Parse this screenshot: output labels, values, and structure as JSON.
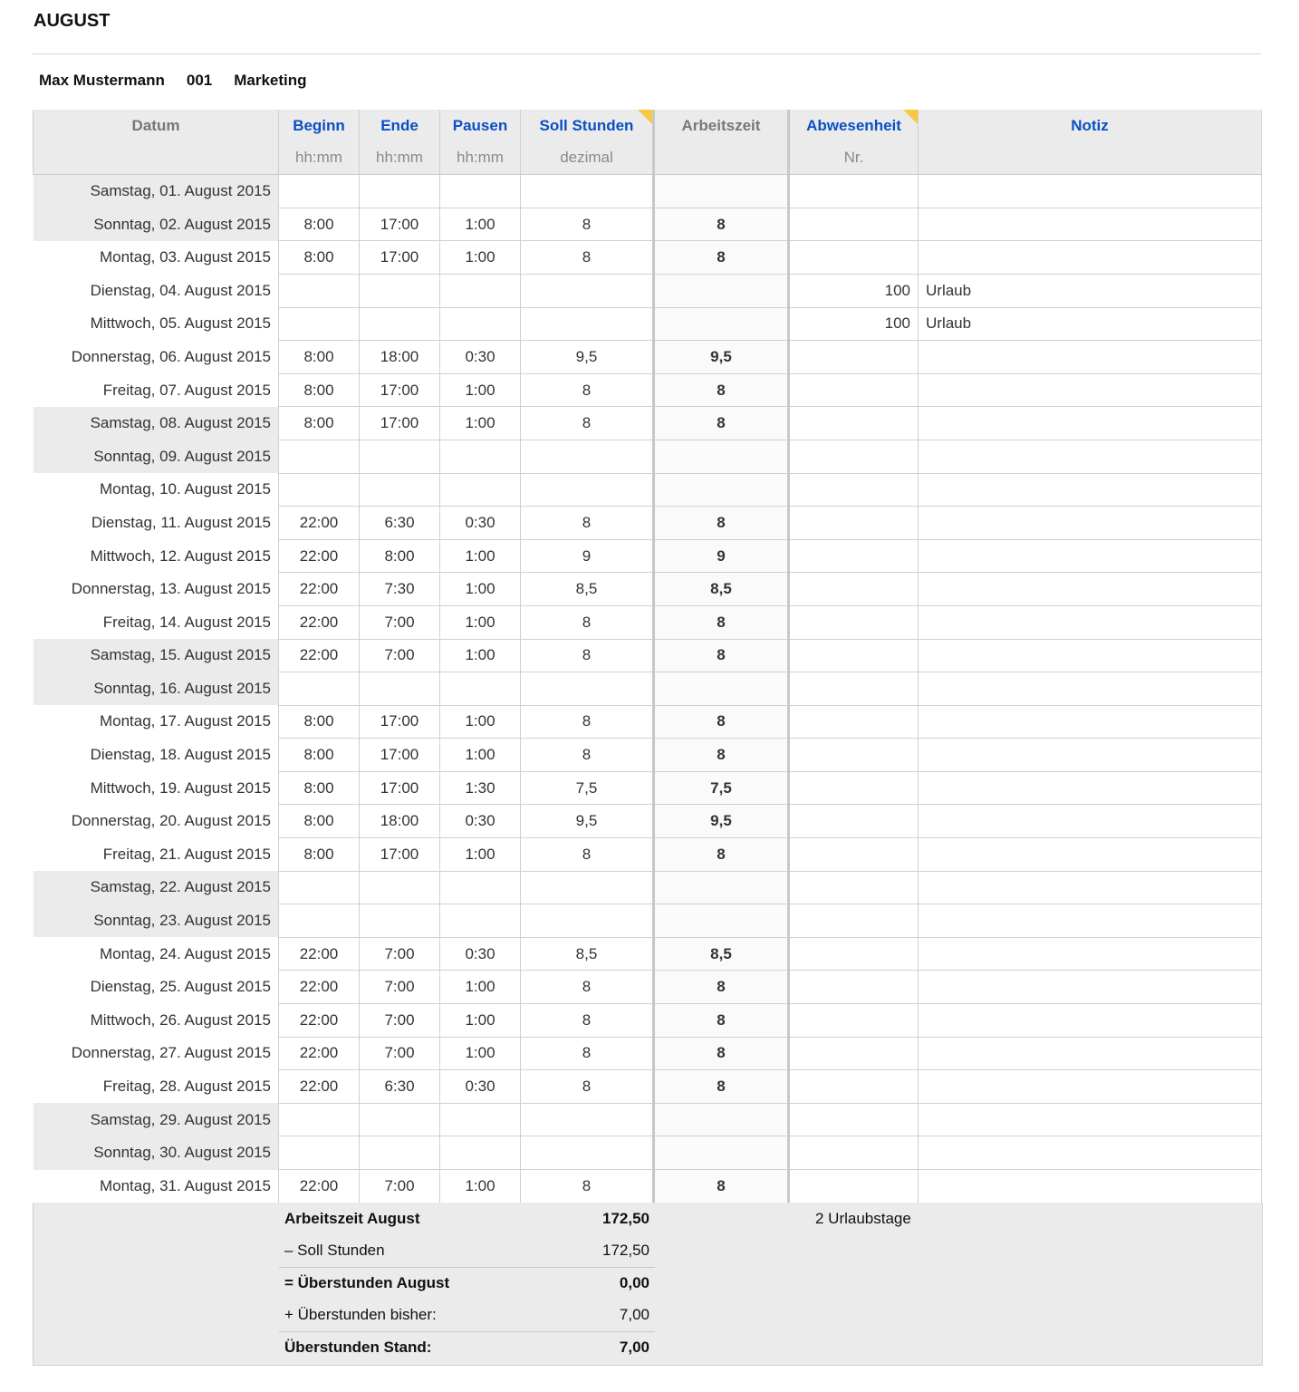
{
  "title": "AUGUST",
  "employee": {
    "name": "Max Mustermann",
    "id": "001",
    "department": "Marketing"
  },
  "headers": [
    {
      "label": "Datum",
      "sub": ""
    },
    {
      "label": "Beginn",
      "sub": "hh:mm"
    },
    {
      "label": "Ende",
      "sub": "hh:mm"
    },
    {
      "label": "Pausen",
      "sub": "hh:mm"
    },
    {
      "label": "Soll Stunden",
      "sub": "dezimal"
    },
    {
      "label": "Arbeitszeit",
      "sub": ""
    },
    {
      "label": "Abwesenheit",
      "sub": "Nr."
    },
    {
      "label": "Notiz",
      "sub": ""
    }
  ],
  "rows": [
    [
      "Samstag, 01. August 2015",
      "",
      "",
      "",
      "",
      "",
      "",
      "",
      1
    ],
    [
      "Sonntag, 02. August 2015",
      "8:00",
      "17:00",
      "1:00",
      "8",
      "8",
      "",
      "",
      1
    ],
    [
      "Montag, 03. August 2015",
      "8:00",
      "17:00",
      "1:00",
      "8",
      "8",
      "",
      "",
      0
    ],
    [
      "Dienstag, 04. August 2015",
      "",
      "",
      "",
      "",
      "",
      "100",
      "Urlaub",
      0
    ],
    [
      "Mittwoch, 05. August 2015",
      "",
      "",
      "",
      "",
      "",
      "100",
      "Urlaub",
      0
    ],
    [
      "Donnerstag, 06. August 2015",
      "8:00",
      "18:00",
      "0:30",
      "9,5",
      "9,5",
      "",
      "",
      0
    ],
    [
      "Freitag, 07. August 2015",
      "8:00",
      "17:00",
      "1:00",
      "8",
      "8",
      "",
      "",
      0
    ],
    [
      "Samstag, 08. August 2015",
      "8:00",
      "17:00",
      "1:00",
      "8",
      "8",
      "",
      "",
      1
    ],
    [
      "Sonntag, 09. August 2015",
      "",
      "",
      "",
      "",
      "",
      "",
      "",
      1
    ],
    [
      "Montag, 10. August 2015",
      "",
      "",
      "",
      "",
      "",
      "",
      "",
      0
    ],
    [
      "Dienstag, 11. August 2015",
      "22:00",
      "6:30",
      "0:30",
      "8",
      "8",
      "",
      "",
      0
    ],
    [
      "Mittwoch, 12. August 2015",
      "22:00",
      "8:00",
      "1:00",
      "9",
      "9",
      "",
      "",
      0
    ],
    [
      "Donnerstag, 13. August 2015",
      "22:00",
      "7:30",
      "1:00",
      "8,5",
      "8,5",
      "",
      "",
      0
    ],
    [
      "Freitag, 14. August 2015",
      "22:00",
      "7:00",
      "1:00",
      "8",
      "8",
      "",
      "",
      0
    ],
    [
      "Samstag, 15. August 2015",
      "22:00",
      "7:00",
      "1:00",
      "8",
      "8",
      "",
      "",
      1
    ],
    [
      "Sonntag, 16. August 2015",
      "",
      "",
      "",
      "",
      "",
      "",
      "",
      1
    ],
    [
      "Montag, 17. August 2015",
      "8:00",
      "17:00",
      "1:00",
      "8",
      "8",
      "",
      "",
      0
    ],
    [
      "Dienstag, 18. August 2015",
      "8:00",
      "17:00",
      "1:00",
      "8",
      "8",
      "",
      "",
      0
    ],
    [
      "Mittwoch, 19. August 2015",
      "8:00",
      "17:00",
      "1:30",
      "7,5",
      "7,5",
      "",
      "",
      0
    ],
    [
      "Donnerstag, 20. August 2015",
      "8:00",
      "18:00",
      "0:30",
      "9,5",
      "9,5",
      "",
      "",
      0
    ],
    [
      "Freitag, 21. August 2015",
      "8:00",
      "17:00",
      "1:00",
      "8",
      "8",
      "",
      "",
      0
    ],
    [
      "Samstag, 22. August 2015",
      "",
      "",
      "",
      "",
      "",
      "",
      "",
      1
    ],
    [
      "Sonntag, 23. August 2015",
      "",
      "",
      "",
      "",
      "",
      "",
      "",
      1
    ],
    [
      "Montag, 24. August 2015",
      "22:00",
      "7:00",
      "0:30",
      "8,5",
      "8,5",
      "",
      "",
      0
    ],
    [
      "Dienstag, 25. August 2015",
      "22:00",
      "7:00",
      "1:00",
      "8",
      "8",
      "",
      "",
      0
    ],
    [
      "Mittwoch, 26. August 2015",
      "22:00",
      "7:00",
      "1:00",
      "8",
      "8",
      "",
      "",
      0
    ],
    [
      "Donnerstag, 27. August 2015",
      "22:00",
      "7:00",
      "1:00",
      "8",
      "8",
      "",
      "",
      0
    ],
    [
      "Freitag, 28. August 2015",
      "22:00",
      "6:30",
      "0:30",
      "8",
      "8",
      "",
      "",
      0
    ],
    [
      "Samstag, 29. August 2015",
      "",
      "",
      "",
      "",
      "",
      "",
      "",
      1
    ],
    [
      "Sonntag, 30. August 2015",
      "",
      "",
      "",
      "",
      "",
      "",
      "",
      1
    ],
    [
      "Montag, 31. August 2015",
      "22:00",
      "7:00",
      "1:00",
      "8",
      "8",
      "",
      "",
      0
    ]
  ],
  "summary": [
    {
      "label": "Arbeitszeit August",
      "value": "172,50",
      "bold": true
    },
    {
      "label": "– Soll Stunden",
      "value": "172,50",
      "bold": false
    },
    {
      "label": "= Überstunden August",
      "value": "0,00",
      "bold": true
    },
    {
      "label": "+ Überstunden bisher:",
      "value": "7,00",
      "bold": false
    },
    {
      "label": "Überstunden Stand:",
      "value": "7,00",
      "bold": true
    }
  ],
  "urlaubstage": "2 Urlaubstage",
  "colors": {
    "header_link": "#0b4fc7",
    "comment_marker": "#f7c842",
    "weekend_bg": "#ebebeb"
  }
}
